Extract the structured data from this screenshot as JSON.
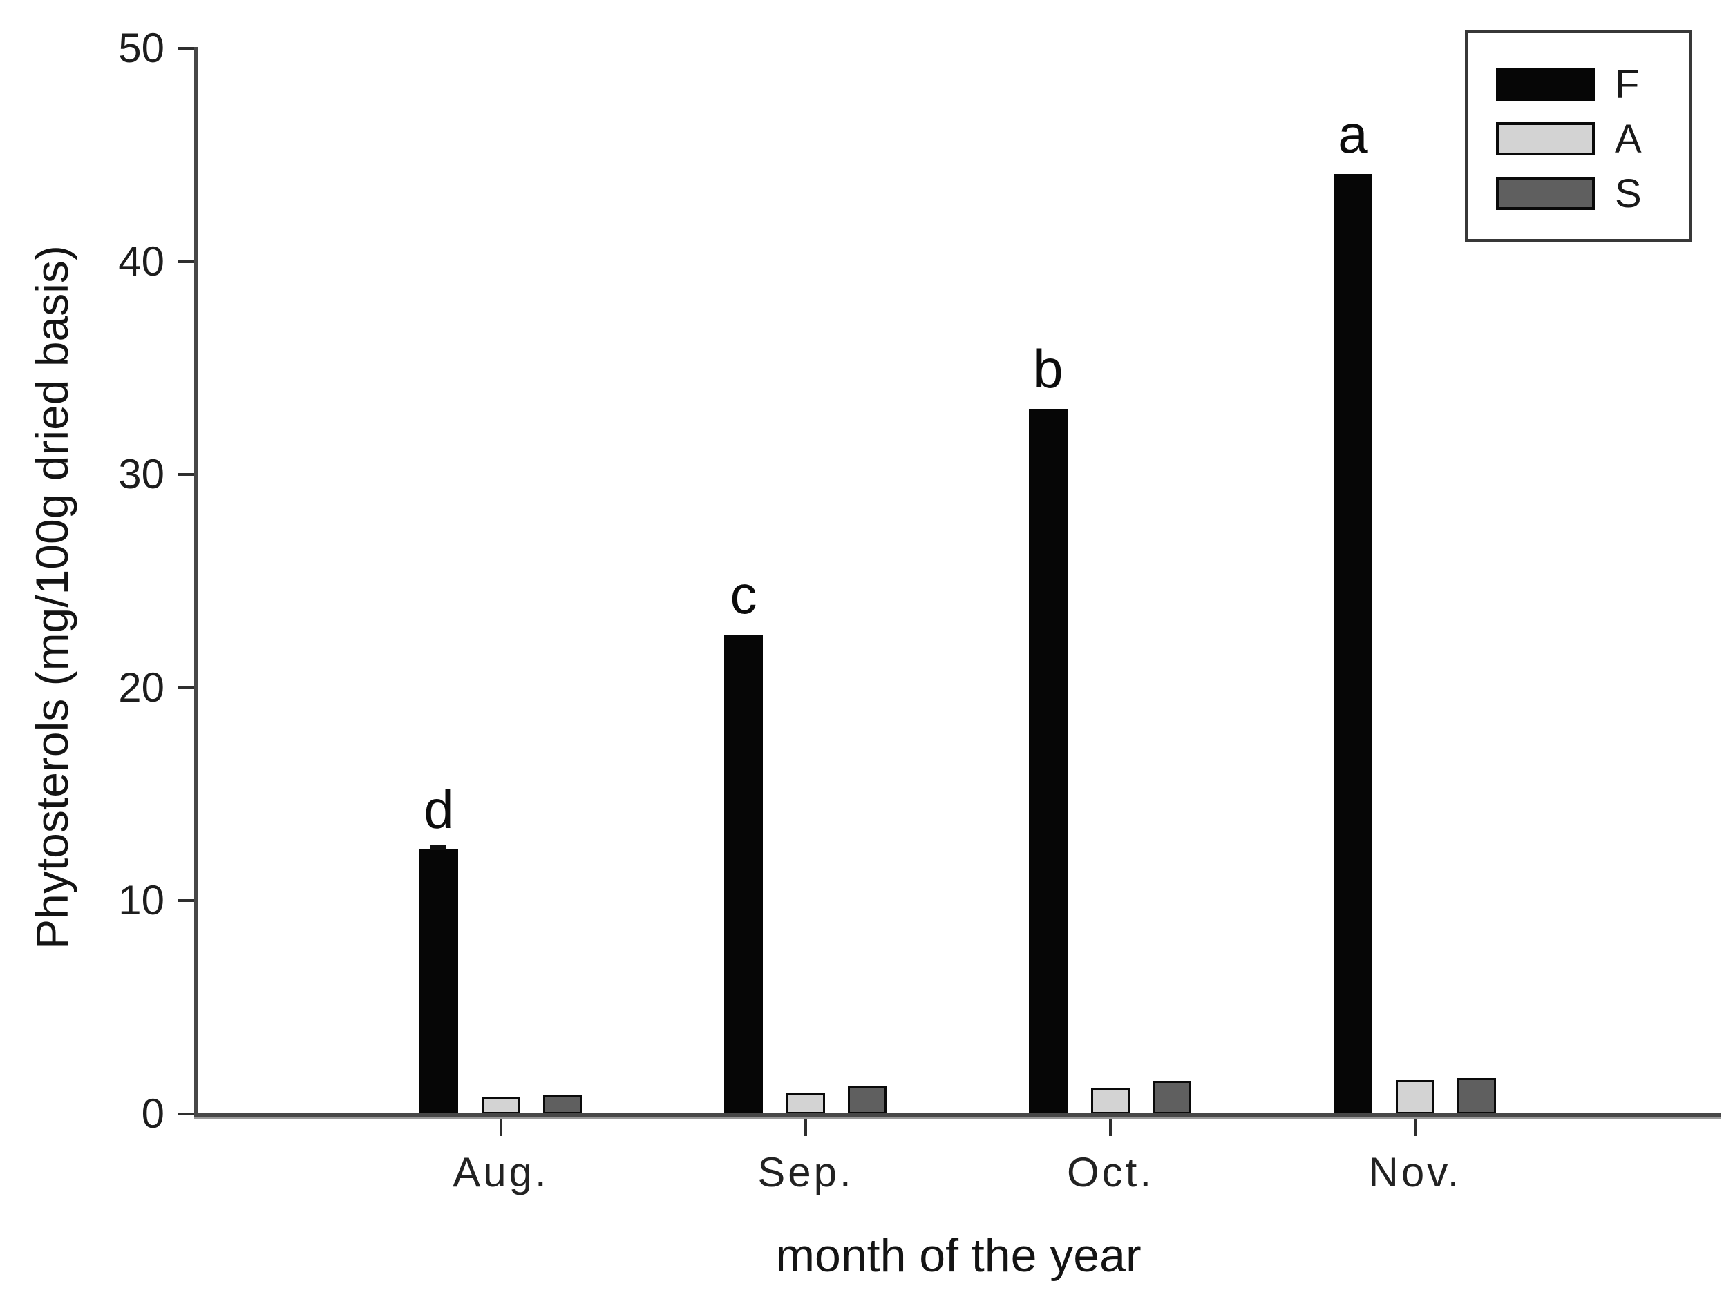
{
  "chart_data": {
    "type": "bar",
    "title": "",
    "xlabel": "month of the year",
    "ylabel": "Phytosterols (mg/100g dried basis)",
    "categories": [
      "Aug.",
      "Sep.",
      "Oct.",
      "Nov."
    ],
    "series": [
      {
        "name": "F",
        "color": "#060606",
        "border": "none",
        "values": [
          12.4,
          22.5,
          33.1,
          44.1
        ]
      },
      {
        "name": "A",
        "color": "#d3d3d3",
        "border": "#0a0a0a",
        "values": [
          0.8,
          1.0,
          1.2,
          1.6
        ]
      },
      {
        "name": "S",
        "color": "#5f5f5f",
        "border": "#0a0a0a",
        "values": [
          0.9,
          1.3,
          1.55,
          1.7
        ]
      }
    ],
    "significance_letters": {
      "series": "F",
      "labels": [
        "d",
        "c",
        "b",
        "a"
      ]
    },
    "error_bar_cap": {
      "series": "F",
      "category": "Aug."
    },
    "yticks": [
      0,
      10,
      20,
      30,
      40,
      50
    ],
    "ylim": [
      0,
      50
    ],
    "grid": false,
    "legend_position": "top-right",
    "legend_entries": [
      "F",
      "A",
      "S"
    ],
    "axis_color": "#474747",
    "text_color": "#161616"
  }
}
